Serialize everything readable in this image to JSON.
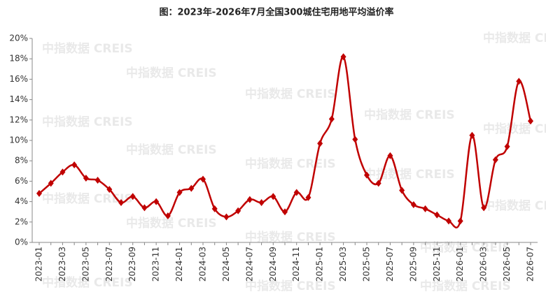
{
  "chart_data": {
    "type": "line",
    "title": "图：2023年-2026年7月全国300城住宅用地平均溢价率",
    "watermark": "中指数据 CREIS",
    "categories": [
      "2023-01",
      null,
      "2023-03",
      null,
      "2023-05",
      null,
      "2023-07",
      null,
      "2023-09",
      null,
      "2023-11",
      null,
      "2024-01",
      null,
      "2024-03",
      null,
      "2024-05",
      null,
      "2024-07",
      null,
      "2024-09",
      null,
      "2024-11",
      null,
      "2025-01",
      null,
      "2025-03",
      null,
      "2025-05",
      null,
      "2025-07",
      null,
      "2025-09",
      null,
      "2025-11",
      null,
      "2026-01",
      null,
      "2026-03",
      null,
      "2026-05",
      null,
      "2026-07"
    ],
    "series": [
      {
        "name": "平均溢价率",
        "color": "#c00000",
        "values": [
          4.8,
          5.8,
          6.9,
          7.6,
          6.3,
          6.1,
          5.2,
          3.9,
          4.5,
          3.4,
          4.0,
          2.6,
          4.9,
          5.3,
          6.2,
          3.3,
          2.5,
          3.1,
          4.2,
          3.9,
          4.5,
          3.0,
          4.9,
          4.4,
          9.7,
          12.1,
          18.2,
          10.1,
          6.6,
          5.8,
          8.5,
          5.1,
          3.7,
          3.3,
          2.7,
          2.1,
          2.1,
          10.5,
          3.4,
          8.1,
          9.4,
          15.8,
          11.9
        ]
      }
    ],
    "ylim": [
      0,
      20
    ],
    "yticks": [
      {
        "value": 0,
        "label": "0%"
      },
      {
        "value": 2,
        "label": "2%"
      },
      {
        "value": 4,
        "label": "4%"
      },
      {
        "value": 6,
        "label": "6%"
      },
      {
        "value": 8,
        "label": "8%"
      },
      {
        "value": 10,
        "label": "10%"
      },
      {
        "value": 12,
        "label": "12%"
      },
      {
        "value": 14,
        "label": "14%"
      },
      {
        "value": 16,
        "label": "16%"
      },
      {
        "value": 18,
        "label": "18%"
      },
      {
        "value": 20,
        "label": "20%"
      }
    ],
    "grid": false
  }
}
